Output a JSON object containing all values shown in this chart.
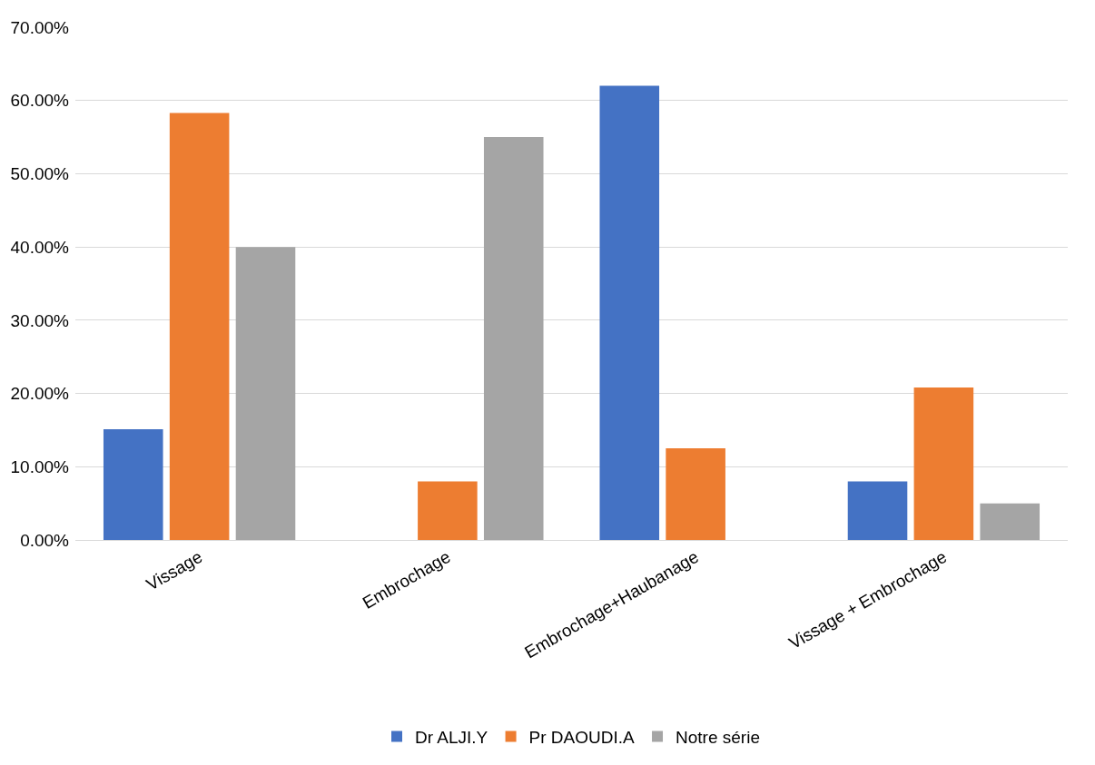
{
  "chart_data": {
    "type": "bar",
    "categories": [
      "Vissage",
      "Embrochage",
      "Embrochage+Haubanage",
      "Vissage + Embrochage"
    ],
    "series": [
      {
        "name": "Dr ALJI.Y",
        "color": "#4472c4",
        "values": [
          15.1,
          0,
          62.0,
          8.0
        ]
      },
      {
        "name": "Pr DAOUDI.A",
        "color": "#ed7d31",
        "values": [
          58.3,
          8.0,
          12.5,
          20.8
        ]
      },
      {
        "name": "Notre série",
        "color": "#a5a5a5",
        "values": [
          40.0,
          55.0,
          0,
          5.0
        ]
      }
    ],
    "ylim": [
      0,
      70
    ],
    "yticks": [
      {
        "value": 0,
        "label": "0.00%"
      },
      {
        "value": 10,
        "label": "10.00%"
      },
      {
        "value": 20,
        "label": "20.00%"
      },
      {
        "value": 30,
        "label": "30.00%"
      },
      {
        "value": 40,
        "label": "40.00%"
      },
      {
        "value": 50,
        "label": "50.00%"
      },
      {
        "value": 60,
        "label": "60.00%"
      },
      {
        "value": 70,
        "label": "70.00%"
      }
    ],
    "grid": "y",
    "legend": "bottom"
  }
}
